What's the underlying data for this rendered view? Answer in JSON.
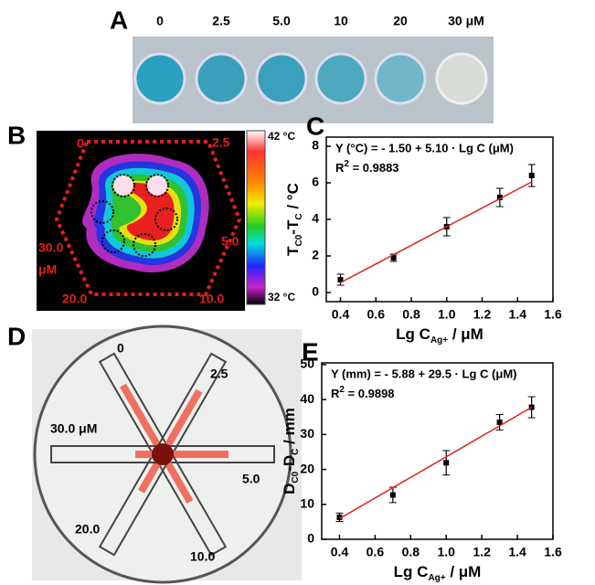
{
  "panels": {
    "A": {
      "label": "A",
      "concentrations": [
        "0",
        "2.5",
        "5.0",
        "10",
        "20",
        "30 μM"
      ]
    },
    "B": {
      "label": "B",
      "labels": [
        "0",
        "2.5",
        "5.0",
        "10.0",
        "20.0",
        "30.0"
      ],
      "unit": "μM",
      "scale_max": "42 °C",
      "scale_min": "32 °C"
    },
    "D": {
      "label": "D",
      "labels": [
        "0",
        "2.5",
        "5.0",
        "10.0",
        "20.0",
        "30.0 μM"
      ]
    }
  },
  "chart_data": [
    {
      "type": "scatter",
      "label": "C",
      "equation": "Y (°C) = - 1.50 + 5.10 · Lg C (μM)",
      "r2": [
        "R",
        "2",
        " = 0.9883"
      ],
      "ylabel": [
        "T",
        "C0",
        "-T",
        "C",
        " / °C"
      ],
      "xlabel": [
        "Lg C",
        "Ag+",
        " / μM"
      ],
      "x": [
        0.4,
        0.7,
        1.0,
        1.3,
        1.48
      ],
      "series": [
        {
          "color": "#000000",
          "values": [
            0.7,
            1.9,
            3.6,
            5.2,
            6.4
          ],
          "errors": [
            0.3,
            0.2,
            0.5,
            0.5,
            0.6
          ]
        },
        {
          "type": "line",
          "color": "#e02020",
          "x": [
            0.4,
            1.48
          ],
          "values": [
            0.54,
            6.05
          ]
        }
      ],
      "xlim": [
        0.32,
        1.6
      ],
      "xticks": [
        0.4,
        0.6,
        0.8,
        {
          "value": 1,
          "label": "1.0"
        },
        1.2,
        1.4,
        1.6
      ],
      "ylim": [
        -0.5,
        8.5
      ],
      "yticks": [
        0,
        2,
        4,
        6,
        8
      ]
    },
    {
      "type": "scatter",
      "label": "E",
      "equation": "Y (mm) = - 5.88 + 29.5 · Lg C (μM)",
      "r2": [
        "R",
        "2",
        " = 0.9898"
      ],
      "ylabel": [
        "D",
        "C0",
        "-D",
        "C",
        " / mm"
      ],
      "xlabel": [
        "Lg C",
        "Ag+",
        " / μM"
      ],
      "x": [
        0.4,
        0.7,
        1.0,
        1.3,
        1.48
      ],
      "series": [
        {
          "color": "#000000",
          "values": [
            6.3,
            12.7,
            21.9,
            33.5,
            37.8
          ],
          "errors": [
            1.2,
            2.2,
            3.5,
            2.2,
            3.0
          ]
        },
        {
          "type": "line",
          "color": "#e02020",
          "x": [
            0.4,
            1.48
          ],
          "values": [
            5.92,
            37.78
          ]
        }
      ],
      "xlim": [
        0.3,
        1.6
      ],
      "xticks": [
        0.4,
        0.6,
        0.8,
        {
          "value": 1,
          "label": "1.0"
        },
        1.2,
        1.4,
        1.6
      ],
      "ylim": [
        0,
        50.5
      ],
      "yticks": [
        0,
        10,
        20,
        30,
        40,
        50
      ]
    }
  ]
}
